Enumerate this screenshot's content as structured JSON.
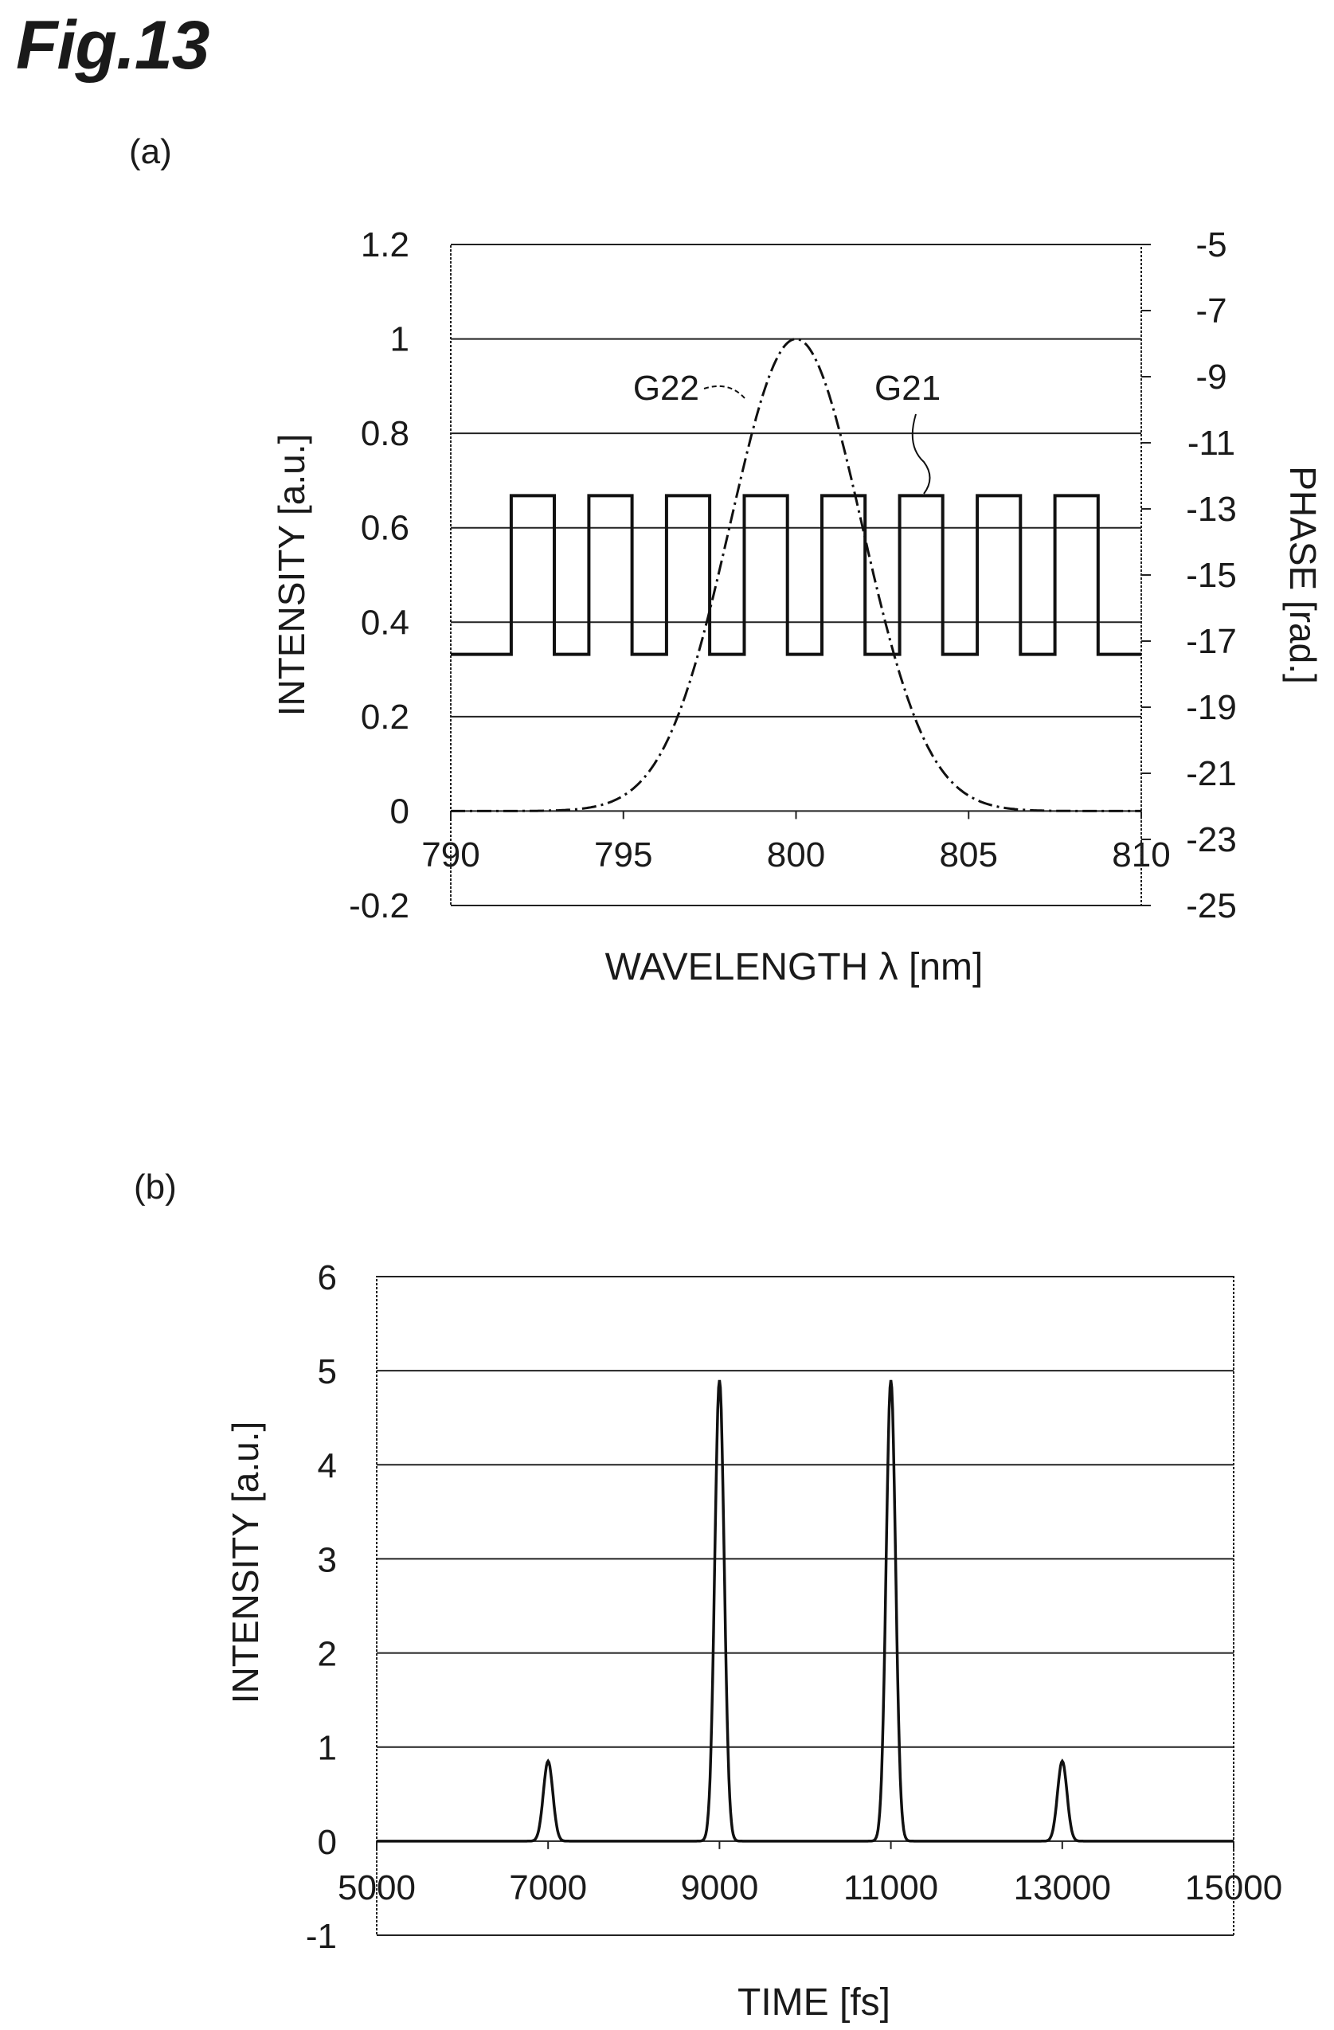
{
  "figure": {
    "title": "Fig.13"
  },
  "chart_data": [
    {
      "panel": "(a)",
      "type": "line",
      "xlabel": "WAVELENGTH λ  [nm]",
      "ylabel": "INTENSITY [a.u.]",
      "y2label": "PHASE [rad.]",
      "xlim": [
        790,
        810
      ],
      "ylim": [
        -0.2,
        1.2
      ],
      "y2lim": [
        -25,
        -5
      ],
      "xticks": [
        "790",
        "795",
        "800",
        "805",
        "810"
      ],
      "yticks": [
        "1.2",
        "1",
        "0.8",
        "0.6",
        "0.4",
        "0.2",
        "0",
        "-0.2"
      ],
      "y2ticks": [
        "-5",
        "-7",
        "-9",
        "-11",
        "-13",
        "-15",
        "-17",
        "-19",
        "-21",
        "-23",
        "-25"
      ],
      "grid": "horizontal",
      "annotations": [
        "G22",
        "G21"
      ],
      "series": [
        {
          "name": "G22",
          "axis": "left",
          "style": "dash-dot",
          "gaussian": {
            "center": 800,
            "peak": 1.0,
            "fwhm": 4.5
          }
        },
        {
          "name": "G21",
          "axis": "right",
          "style": "solid",
          "x": [
            790,
            791.75,
            791.75,
            793.0,
            793.0,
            794.0,
            794.0,
            795.25,
            795.25,
            796.25,
            796.25,
            797.5,
            797.5,
            798.5,
            798.5,
            799.75,
            799.75,
            800.75,
            800.75,
            802.0,
            802.0,
            803.0,
            803.0,
            804.25,
            804.25,
            805.25,
            805.25,
            806.5,
            806.5,
            807.5,
            807.5,
            808.75,
            808.75,
            810
          ],
          "y": [
            -17.4,
            -17.4,
            -12.6,
            -12.6,
            -17.4,
            -17.4,
            -12.6,
            -12.6,
            -17.4,
            -17.4,
            -12.6,
            -12.6,
            -17.4,
            -17.4,
            -12.6,
            -12.6,
            -17.4,
            -17.4,
            -12.6,
            -12.6,
            -17.4,
            -17.4,
            -12.6,
            -12.6,
            -17.4,
            -17.4,
            -12.6,
            -12.6,
            -17.4,
            -17.4,
            -12.6,
            -12.6,
            -17.4,
            -17.4
          ]
        }
      ]
    },
    {
      "panel": "(b)",
      "type": "line",
      "xlabel": "TIME [fs]",
      "ylabel": "INTENSITY [a.u.]",
      "xlim": [
        5000,
        15000
      ],
      "ylim": [
        -1,
        6
      ],
      "xticks": [
        "5000",
        "7000",
        "9000",
        "11000",
        "13000",
        "15000"
      ],
      "yticks": [
        "6",
        "5",
        "4",
        "3",
        "2",
        "1",
        "0",
        "-1"
      ],
      "grid": "horizontal",
      "series": [
        {
          "style": "solid",
          "peaks": [
            {
              "x": 7000,
              "y": 0.85
            },
            {
              "x": 9000,
              "y": 4.9
            },
            {
              "x": 11000,
              "y": 4.9
            },
            {
              "x": 13000,
              "y": 0.85
            }
          ],
          "peak_fwhm": 130
        }
      ]
    }
  ]
}
